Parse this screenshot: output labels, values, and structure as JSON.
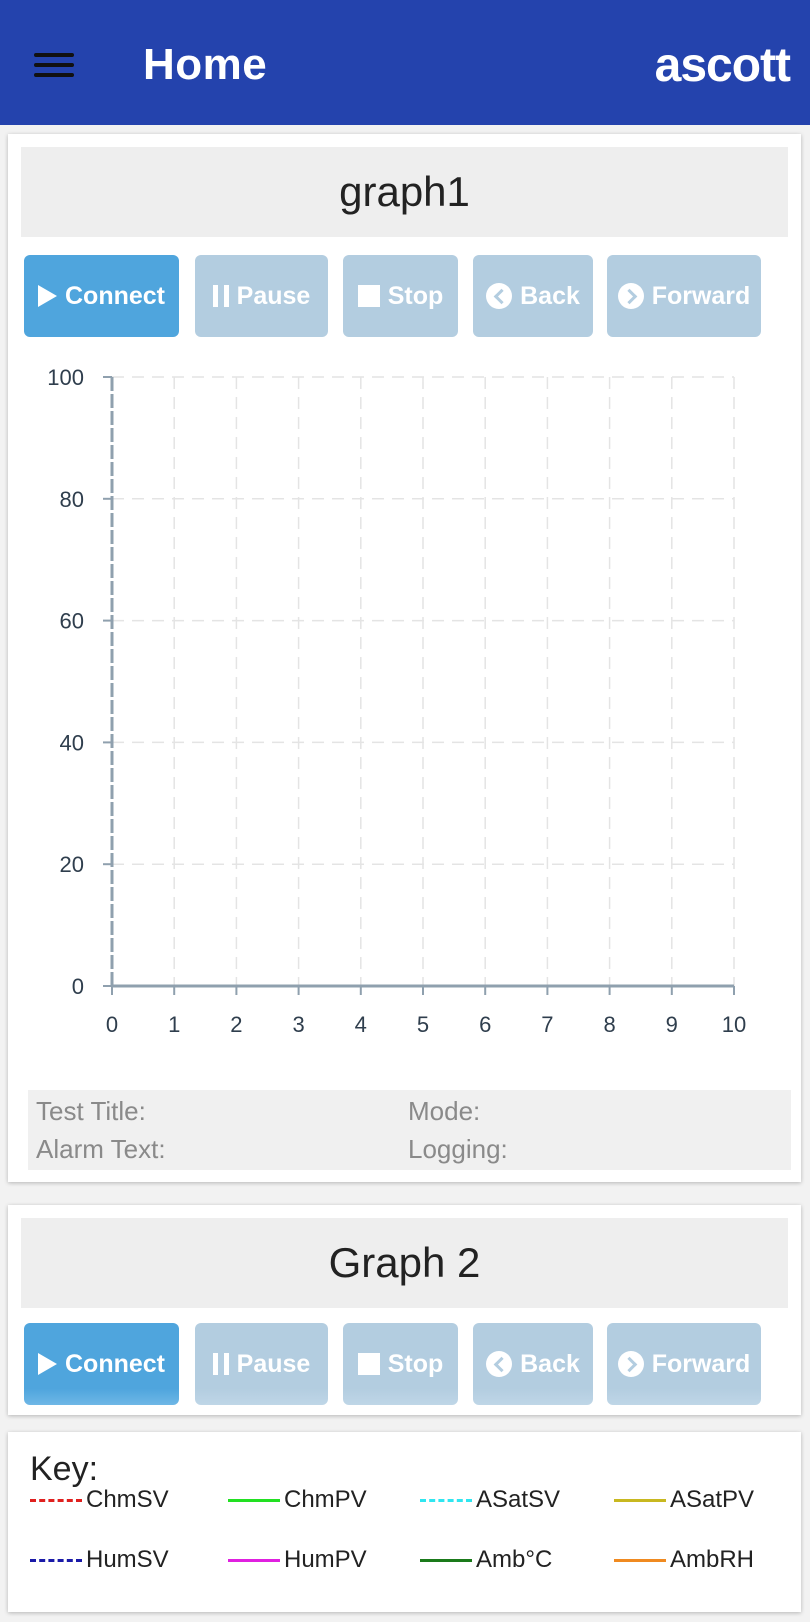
{
  "appbar": {
    "title": "Home",
    "brand": "ascott"
  },
  "graph1": {
    "title": "graph1",
    "buttons": {
      "connect": "Connect",
      "pause": "Pause",
      "stop": "Stop",
      "back": "Back",
      "forward": "Forward"
    },
    "info": {
      "test_title": "Test Title:",
      "mode": "Mode:",
      "alarm_text": "Alarm Text:",
      "logging": "Logging:"
    }
  },
  "graph2": {
    "title": "Graph 2",
    "buttons": {
      "connect": "Connect",
      "pause": "Pause",
      "stop": "Stop",
      "back": "Back",
      "forward": "Forward"
    }
  },
  "chart_data": {
    "type": "line",
    "title": "",
    "xlabel": "",
    "ylabel": "",
    "xlim": [
      0,
      10
    ],
    "ylim": [
      0,
      100
    ],
    "x_ticks": [
      "0",
      "1",
      "2",
      "3",
      "4",
      "5",
      "6",
      "7",
      "8",
      "9",
      "10"
    ],
    "y_ticks": [
      "0",
      "20",
      "40",
      "60",
      "80",
      "100"
    ],
    "grid": true,
    "series": []
  },
  "key": {
    "title": "Key:",
    "items": [
      {
        "label": "ChmSV",
        "color": "#e0201e",
        "style": "dashed"
      },
      {
        "label": "ChmPV",
        "color": "#22e022",
        "style": "solid"
      },
      {
        "label": "ASatSV",
        "color": "#2fe6f0",
        "style": "dashed"
      },
      {
        "label": "ASatPV",
        "color": "#c8b820",
        "style": "solid"
      },
      {
        "label": "HumSV",
        "color": "#1a1aa8",
        "style": "dashed"
      },
      {
        "label": "HumPV",
        "color": "#e020e0",
        "style": "solid"
      },
      {
        "label": "Amb°C",
        "color": "#1a7a1a",
        "style": "solid"
      },
      {
        "label": "AmbRH",
        "color": "#f08a20",
        "style": "solid"
      }
    ]
  }
}
